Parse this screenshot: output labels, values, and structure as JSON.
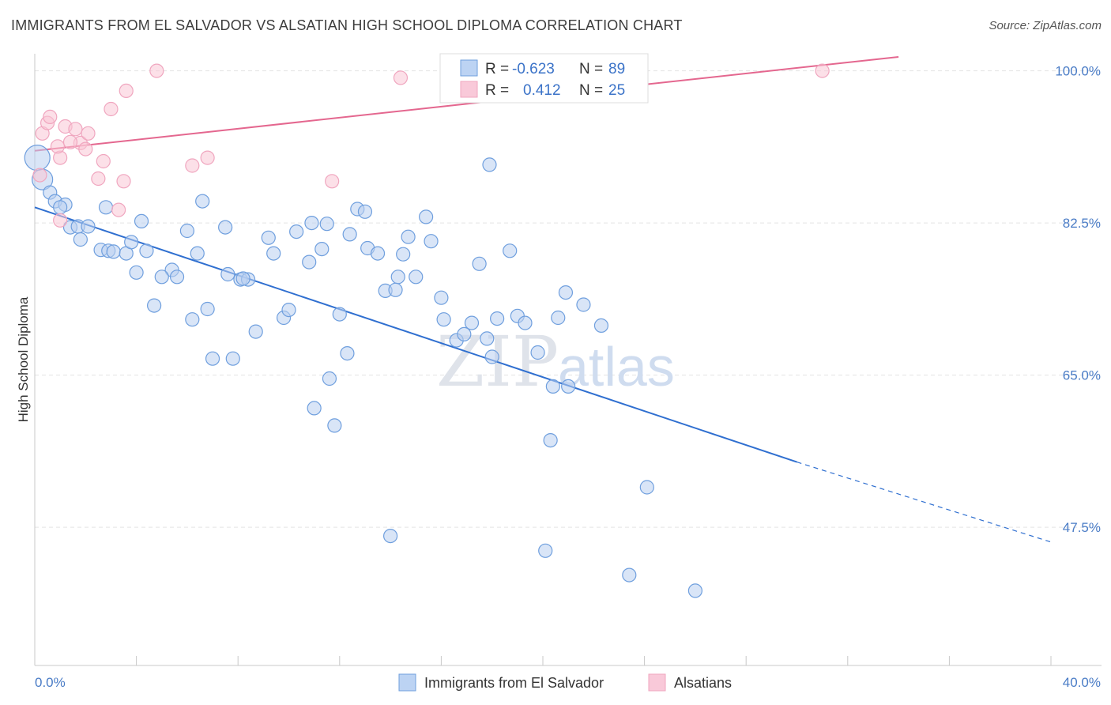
{
  "header": {
    "title": "IMMIGRANTS FROM EL SALVADOR VS ALSATIAN HIGH SCHOOL DIPLOMA CORRELATION CHART",
    "source": "Source: ZipAtlas.com"
  },
  "watermark": {
    "zip": "ZIP",
    "atlas": "atlas"
  },
  "legend_box": {
    "rows": [
      {
        "r_label": "R =",
        "r_value": "-0.623",
        "n_label": "N =",
        "n_value": "89"
      },
      {
        "r_label": "R =",
        "r_value": "0.412",
        "n_label": "N =",
        "n_value": "25"
      }
    ]
  },
  "bottom_legend": {
    "items": [
      {
        "label": "Immigrants from El Salvador"
      },
      {
        "label": "Alsatians"
      }
    ]
  },
  "chart_data": {
    "type": "scatter",
    "title": "IMMIGRANTS FROM EL SALVADOR VS ALSATIAN HIGH SCHOOL DIPLOMA CORRELATION CHART",
    "xlabel": "",
    "ylabel": "High School Diploma",
    "xlim": [
      0,
      40
    ],
    "ylim": [
      31.6,
      101.6
    ],
    "x_tick_labels": [
      "0.0%",
      "40.0%"
    ],
    "y_ticks": [
      47.5,
      65.0,
      82.5,
      100.0
    ],
    "y_tick_labels": [
      "47.5%",
      "65.0%",
      "82.5%",
      "100.0%"
    ],
    "grid": true,
    "legend": "top-center",
    "colors": {
      "blue": "#6f9fde",
      "blue_line": "#2f6fd0",
      "pink": "#f0a6bf",
      "pink_line": "#e4678f"
    },
    "series": [
      {
        "name": "Immigrants from El Salvador",
        "color": "#6f9fde",
        "trend": {
          "x": [
            0.0,
            30.0
          ],
          "y": [
            84.3,
            55.0
          ],
          "dashed_to": [
            40.0,
            45.8
          ]
        },
        "points": [
          [
            0.1,
            90.0
          ],
          [
            0.3,
            87.5
          ],
          [
            0.6,
            86.0
          ],
          [
            0.8,
            85.0
          ],
          [
            1.2,
            84.6
          ],
          [
            1.0,
            84.3
          ],
          [
            1.4,
            82.0
          ],
          [
            1.7,
            82.1
          ],
          [
            2.1,
            82.1
          ],
          [
            1.8,
            80.6
          ],
          [
            2.6,
            79.4
          ],
          [
            2.9,
            79.3
          ],
          [
            3.1,
            79.2
          ],
          [
            3.6,
            79.0
          ],
          [
            3.8,
            80.3
          ],
          [
            2.8,
            84.3
          ],
          [
            4.2,
            82.7
          ],
          [
            4.4,
            79.3
          ],
          [
            4.0,
            76.8
          ],
          [
            4.7,
            73.0
          ],
          [
            5.4,
            77.1
          ],
          [
            5.0,
            76.3
          ],
          [
            5.6,
            76.3
          ],
          [
            6.0,
            81.6
          ],
          [
            6.2,
            71.4
          ],
          [
            6.4,
            79.0
          ],
          [
            6.6,
            85.0
          ],
          [
            6.8,
            72.6
          ],
          [
            7.0,
            66.9
          ],
          [
            7.5,
            82.0
          ],
          [
            7.6,
            76.6
          ],
          [
            7.8,
            66.9
          ],
          [
            8.1,
            76.0
          ],
          [
            8.4,
            76.0
          ],
          [
            8.7,
            70.0
          ],
          [
            8.2,
            76.1
          ],
          [
            9.2,
            80.8
          ],
          [
            9.4,
            79.0
          ],
          [
            9.8,
            71.6
          ],
          [
            10.3,
            81.5
          ],
          [
            10.0,
            72.5
          ],
          [
            10.8,
            78.0
          ],
          [
            10.9,
            82.5
          ],
          [
            11.3,
            79.5
          ],
          [
            11.5,
            82.4
          ],
          [
            11.6,
            64.6
          ],
          [
            12.0,
            72.0
          ],
          [
            12.3,
            67.5
          ],
          [
            11.0,
            61.2
          ],
          [
            11.8,
            59.2
          ],
          [
            12.4,
            81.2
          ],
          [
            12.7,
            84.1
          ],
          [
            13.0,
            83.8
          ],
          [
            13.1,
            79.6
          ],
          [
            13.5,
            79.0
          ],
          [
            13.8,
            74.7
          ],
          [
            14.3,
            76.3
          ],
          [
            14.5,
            78.9
          ],
          [
            14.7,
            80.9
          ],
          [
            15.0,
            76.3
          ],
          [
            15.4,
            83.2
          ],
          [
            15.6,
            80.4
          ],
          [
            16.0,
            73.9
          ],
          [
            16.6,
            69.0
          ],
          [
            16.9,
            69.7
          ],
          [
            17.2,
            71.0
          ],
          [
            17.5,
            77.8
          ],
          [
            17.8,
            69.2
          ],
          [
            18.0,
            67.1
          ],
          [
            18.2,
            71.5
          ],
          [
            16.1,
            71.4
          ],
          [
            18.7,
            79.3
          ],
          [
            19.0,
            71.8
          ],
          [
            19.3,
            71.0
          ],
          [
            17.9,
            89.2
          ],
          [
            19.8,
            67.6
          ],
          [
            20.6,
            71.6
          ],
          [
            20.4,
            63.7
          ],
          [
            20.9,
            74.5
          ],
          [
            21.0,
            63.7
          ],
          [
            21.6,
            73.1
          ],
          [
            22.3,
            70.7
          ],
          [
            20.3,
            57.5
          ],
          [
            14.0,
            46.5
          ],
          [
            20.1,
            44.8
          ],
          [
            24.1,
            52.1
          ],
          [
            23.4,
            42.0
          ],
          [
            26.0,
            40.2
          ],
          [
            14.2,
            74.8
          ]
        ]
      },
      {
        "name": "Alsatians",
        "color": "#f0a6bf",
        "trend": {
          "x": [
            0.0,
            34.0
          ],
          "y": [
            90.8,
            101.6
          ]
        },
        "points": [
          [
            0.2,
            88.0
          ],
          [
            0.3,
            92.8
          ],
          [
            0.5,
            94.0
          ],
          [
            0.6,
            94.7
          ],
          [
            1.0,
            90.0
          ],
          [
            0.9,
            91.3
          ],
          [
            1.2,
            93.6
          ],
          [
            1.6,
            93.3
          ],
          [
            1.8,
            91.7
          ],
          [
            2.0,
            91.0
          ],
          [
            2.1,
            92.8
          ],
          [
            1.4,
            91.8
          ],
          [
            2.5,
            87.6
          ],
          [
            2.7,
            89.6
          ],
          [
            3.0,
            95.6
          ],
          [
            3.3,
            84.0
          ],
          [
            3.5,
            87.3
          ],
          [
            3.6,
            97.7
          ],
          [
            4.8,
            100.0
          ],
          [
            6.2,
            89.1
          ],
          [
            6.8,
            90.0
          ],
          [
            11.7,
            87.3
          ],
          [
            14.4,
            99.2
          ],
          [
            31.0,
            100.0
          ],
          [
            1.0,
            82.8
          ]
        ]
      }
    ]
  }
}
